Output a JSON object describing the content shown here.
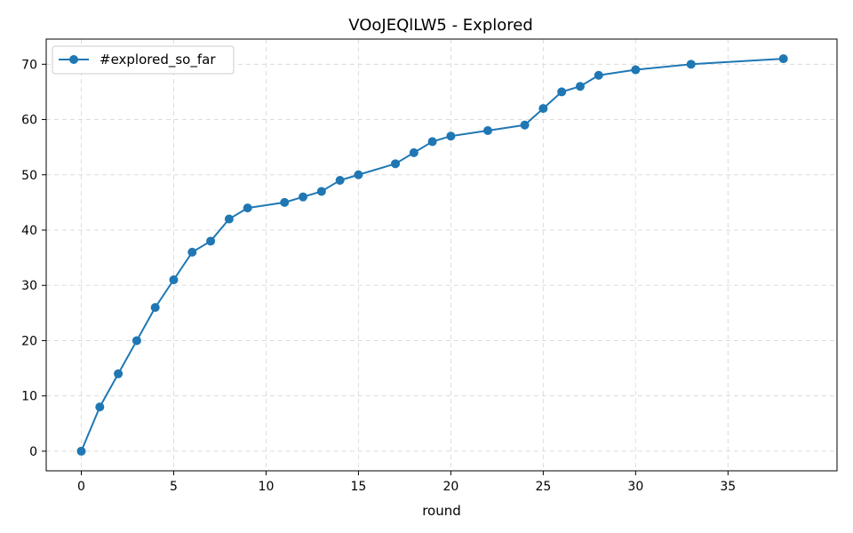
{
  "chart_data": {
    "type": "line",
    "title": "VOoJEQlLW5 - Explored",
    "xlabel": "round",
    "ylabel": "",
    "xlim": [
      -1.9,
      40.9
    ],
    "ylim": [
      -3.55,
      74.55
    ],
    "x_ticks": [
      0,
      5,
      10,
      15,
      20,
      25,
      30,
      35
    ],
    "y_ticks": [
      0,
      10,
      20,
      30,
      40,
      50,
      60,
      70
    ],
    "grid": true,
    "legend_position": "top-left",
    "series": [
      {
        "name": "#explored_so_far",
        "color": "#1f77b4",
        "marker": "circle",
        "x": [
          0,
          1,
          2,
          3,
          4,
          5,
          6,
          7,
          8,
          9,
          11,
          12,
          13,
          14,
          15,
          17,
          18,
          19,
          20,
          22,
          24,
          25,
          26,
          27,
          28,
          30,
          33,
          38
        ],
        "y": [
          0,
          8,
          14,
          20,
          26,
          31,
          36,
          38,
          42,
          44,
          45,
          46,
          47,
          49,
          50,
          52,
          54,
          56,
          57,
          58,
          59,
          62,
          65,
          66,
          68,
          69,
          70,
          71
        ]
      }
    ]
  }
}
